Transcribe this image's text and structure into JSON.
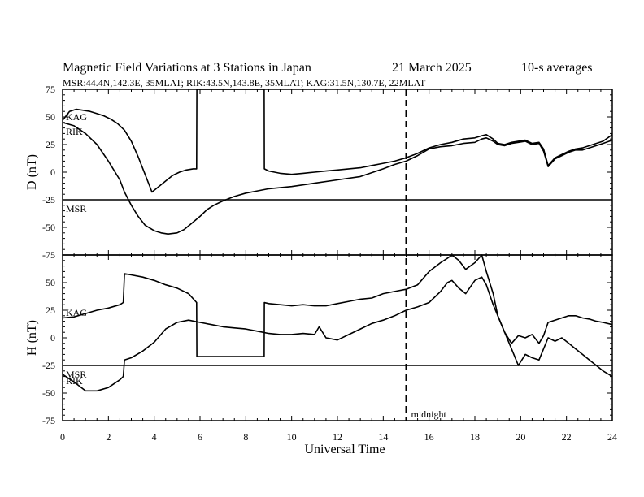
{
  "chart_data": {
    "type": "line",
    "title": "Magnetic Field Variations at 3 Stations in Japan",
    "date": "21  March   2025",
    "averaging": "10-s averages",
    "subtitle": "MSR:44.4N,142.3E, 35MLAT;  RIK:43.5N,143.8E, 35MLAT;  KAG:31.5N,130.7E, 22MLAT",
    "xlabel": "Universal Time",
    "xlim": [
      0,
      24
    ],
    "xticks": [
      "0",
      "2",
      "4",
      "6",
      "8",
      "10",
      "12",
      "14",
      "16",
      "18",
      "20",
      "22",
      "24"
    ],
    "annotation": {
      "text": "midnight",
      "x": 15
    },
    "panels": [
      {
        "ylabel": "D (nT)",
        "ylim": [
          -75,
          75
        ],
        "yticks": [
          "75",
          "50",
          "25",
          "0",
          "-25",
          "-50",
          "-75"
        ],
        "series": [
          {
            "name": "KAG",
            "x": [
              0,
              0.3,
              0.6,
              0.9,
              1.2,
              1.5,
              1.8,
              2.1,
              2.4,
              2.7,
              3.0,
              3.3,
              3.6,
              3.9,
              4.2,
              4.5,
              4.8,
              5.1,
              5.4,
              5.7,
              5.85,
              5.86,
              8.8,
              8.81,
              9.0,
              9.5,
              10,
              10.5,
              11,
              11.5,
              12,
              12.5,
              13,
              13.5,
              14,
              14.5,
              15,
              15.5,
              16,
              16.5,
              17,
              17.5,
              18,
              18.3,
              18.5,
              18.8,
              19.0,
              19.3,
              19.6,
              19.9,
              20.2,
              20.5,
              20.8,
              21.0,
              21.2,
              21.5,
              21.8,
              22.1,
              22.4,
              22.7,
              23.0,
              23.3,
              23.6,
              24
            ],
            "y": [
              47,
              55,
              57,
              56,
              55,
              53,
              51,
              48,
              44,
              38,
              28,
              14,
              -2,
              -18,
              -13,
              -8,
              -3,
              0,
              2,
              3,
              3,
              75,
              75,
              3,
              1,
              -1,
              -2,
              -1,
              0,
              1,
              2,
              3,
              4,
              6,
              8,
              10,
              13,
              17,
              22,
              25,
              27,
              30,
              31,
              33,
              34,
              30,
              26,
              25,
              27,
              28,
              29,
              26,
              27,
              21,
              6,
              13,
              16,
              19,
              21,
              22,
              24,
              26,
              28,
              34
            ]
          },
          {
            "name": "RIK",
            "x": [
              0,
              0.5,
              1.0,
              1.5,
              2.0,
              2.5,
              2.7,
              3.0,
              3.3,
              3.6,
              4.0,
              4.3,
              4.6,
              5.0,
              5.3,
              5.6,
              6.0,
              6.3,
              6.6,
              7.0,
              7.5,
              8.0,
              8.5,
              9.0,
              10,
              11,
              12,
              13,
              14,
              14.5,
              15,
              15.5,
              16,
              16.5,
              17,
              17.5,
              18,
              18.3,
              18.5,
              18.8,
              19.0,
              19.3,
              19.6,
              19.9,
              20.2,
              20.5,
              20.8,
              21.0,
              21.2,
              21.5,
              21.8,
              22.1,
              22.4,
              22.7,
              23.0,
              23.3,
              23.6,
              24
            ],
            "y": [
              45,
              42,
              35,
              25,
              10,
              -7,
              -18,
              -30,
              -40,
              -48,
              -53,
              -55,
              -56,
              -55,
              -52,
              -47,
              -40,
              -34,
              -30,
              -26,
              -22,
              -19,
              -17,
              -15,
              -13,
              -10,
              -7,
              -4,
              3,
              7,
              10,
              15,
              21,
              23,
              24,
              26,
              27,
              30,
              31,
              28,
              25,
              24,
              26,
              27,
              28,
              25,
              26,
              19,
              5,
              12,
              15,
              18,
              20,
              20,
              22,
              24,
              26,
              29
            ]
          },
          {
            "name": "MSR",
            "x": [
              0,
              24
            ],
            "y": [
              -25,
              -25
            ]
          }
        ]
      },
      {
        "ylabel": "H (nT)",
        "ylim": [
          -75,
          75
        ],
        "yticks": [
          "75",
          "50",
          "25",
          "0",
          "-25",
          "-50",
          "-75"
        ],
        "series": [
          {
            "name": "KAG",
            "x": [
              0,
              0.5,
              1.0,
              1.5,
              2.0,
              2.5,
              2.65,
              2.7,
              3.0,
              3.5,
              4.0,
              4.5,
              5.0,
              5.5,
              5.85,
              5.86,
              8.8,
              8.81,
              9.0,
              9.5,
              10,
              10.5,
              11,
              11.5,
              12,
              12.5,
              13,
              13.5,
              14,
              14.5,
              15,
              15.5,
              16,
              16.5,
              16.8,
              17.0,
              17.3,
              17.6,
              18.0,
              18.3,
              18.5,
              18.8,
              19.0,
              19.3,
              19.6,
              19.9,
              20.2,
              20.5,
              20.8,
              21.0,
              21.2,
              21.5,
              21.8,
              22.1,
              22.4,
              22.7,
              23.0,
              23.3,
              23.6,
              24
            ],
            "y": [
              18,
              19,
              22,
              25,
              27,
              30,
              32,
              58,
              57,
              55,
              52,
              48,
              45,
              40,
              32,
              -17,
              -17,
              32,
              31,
              30,
              29,
              30,
              29,
              29,
              31,
              33,
              35,
              36,
              40,
              42,
              44,
              48,
              60,
              68,
              72,
              75,
              70,
              62,
              68,
              75,
              60,
              40,
              20,
              5,
              -5,
              2,
              0,
              3,
              -5,
              2,
              14,
              16,
              18,
              20,
              20,
              18,
              17,
              15,
              14,
              12
            ]
          },
          {
            "name": "RIK",
            "x": [
              0,
              0.5,
              1.0,
              1.5,
              2.0,
              2.5,
              2.65,
              2.7,
              3.0,
              3.5,
              4.0,
              4.5,
              5.0,
              5.5,
              6.0,
              6.5,
              7.0,
              7.5,
              8.0,
              8.5,
              9.0,
              9.5,
              10,
              10.5,
              11,
              11.2,
              11.5,
              12,
              12.5,
              13,
              13.5,
              14,
              14.5,
              15,
              15.5,
              16,
              16.5,
              16.8,
              17.0,
              17.3,
              17.6,
              18.0,
              18.3,
              18.5,
              18.8,
              19.0,
              19.3,
              19.6,
              19.9,
              20.2,
              20.5,
              20.8,
              21.0,
              21.2,
              21.5,
              21.8,
              22.1,
              22.4,
              22.7,
              23.0,
              23.3,
              23.6,
              24
            ],
            "y": [
              -33,
              -40,
              -48,
              -48,
              -45,
              -38,
              -35,
              -20,
              -18,
              -12,
              -4,
              8,
              14,
              16,
              14,
              12,
              10,
              9,
              8,
              6,
              4,
              3,
              3,
              4,
              3,
              10,
              0,
              -2,
              3,
              8,
              13,
              16,
              20,
              25,
              28,
              32,
              42,
              50,
              52,
              45,
              40,
              52,
              55,
              48,
              30,
              20,
              5,
              -10,
              -25,
              -15,
              -18,
              -20,
              -10,
              0,
              -3,
              0,
              -5,
              -10,
              -15,
              -20,
              -25,
              -30,
              -35
            ]
          },
          {
            "name": "MSR",
            "x": [
              0,
              24
            ],
            "y": [
              -25,
              -25
            ]
          }
        ]
      }
    ]
  }
}
